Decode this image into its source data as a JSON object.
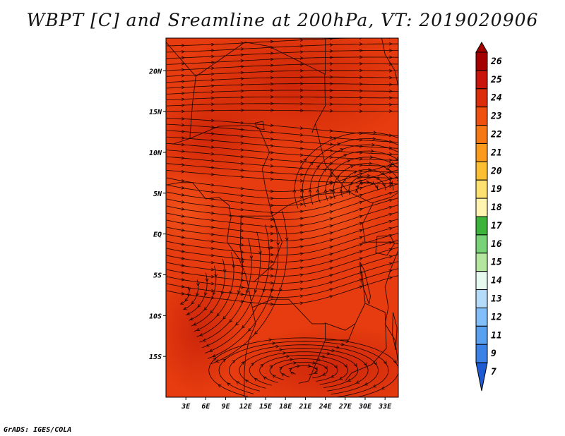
{
  "title": "WBPT [C] and Sreamline at 200hPa, VT: 2019020906",
  "credit": "GrADS: IGES/COLA",
  "map": {
    "lon_range": [
      0,
      35
    ],
    "lat_range": [
      -20,
      24
    ],
    "lon_ticks": [
      "3E",
      "6E",
      "9E",
      "12E",
      "15E",
      "18E",
      "21E",
      "24E",
      "27E",
      "30E",
      "33E"
    ],
    "lat_ticks": [
      "20N",
      "15N",
      "10N",
      "5N",
      "EQ",
      "5S",
      "10S",
      "15S"
    ],
    "field_colors": {
      "base": "#e63c0f",
      "warm": "#d32a0a",
      "cool": "#f0531a"
    }
  },
  "colorbar": {
    "labels": [
      "26",
      "25",
      "24",
      "23",
      "22",
      "21",
      "20",
      "19",
      "18",
      "17",
      "16",
      "15",
      "14",
      "13",
      "12",
      "11",
      "9",
      "7"
    ],
    "colors": [
      "#a50000",
      "#c8140a",
      "#dc2d0a",
      "#f0500f",
      "#f57814",
      "#fa9b1e",
      "#fcbe32",
      "#fde170",
      "#fff5b0",
      "#3cb43c",
      "#78d278",
      "#b4e6a0",
      "#e6faf0",
      "#b4dcfa",
      "#82befa",
      "#5aa0f0",
      "#3c82e6",
      "#1e5ad2"
    ]
  }
}
